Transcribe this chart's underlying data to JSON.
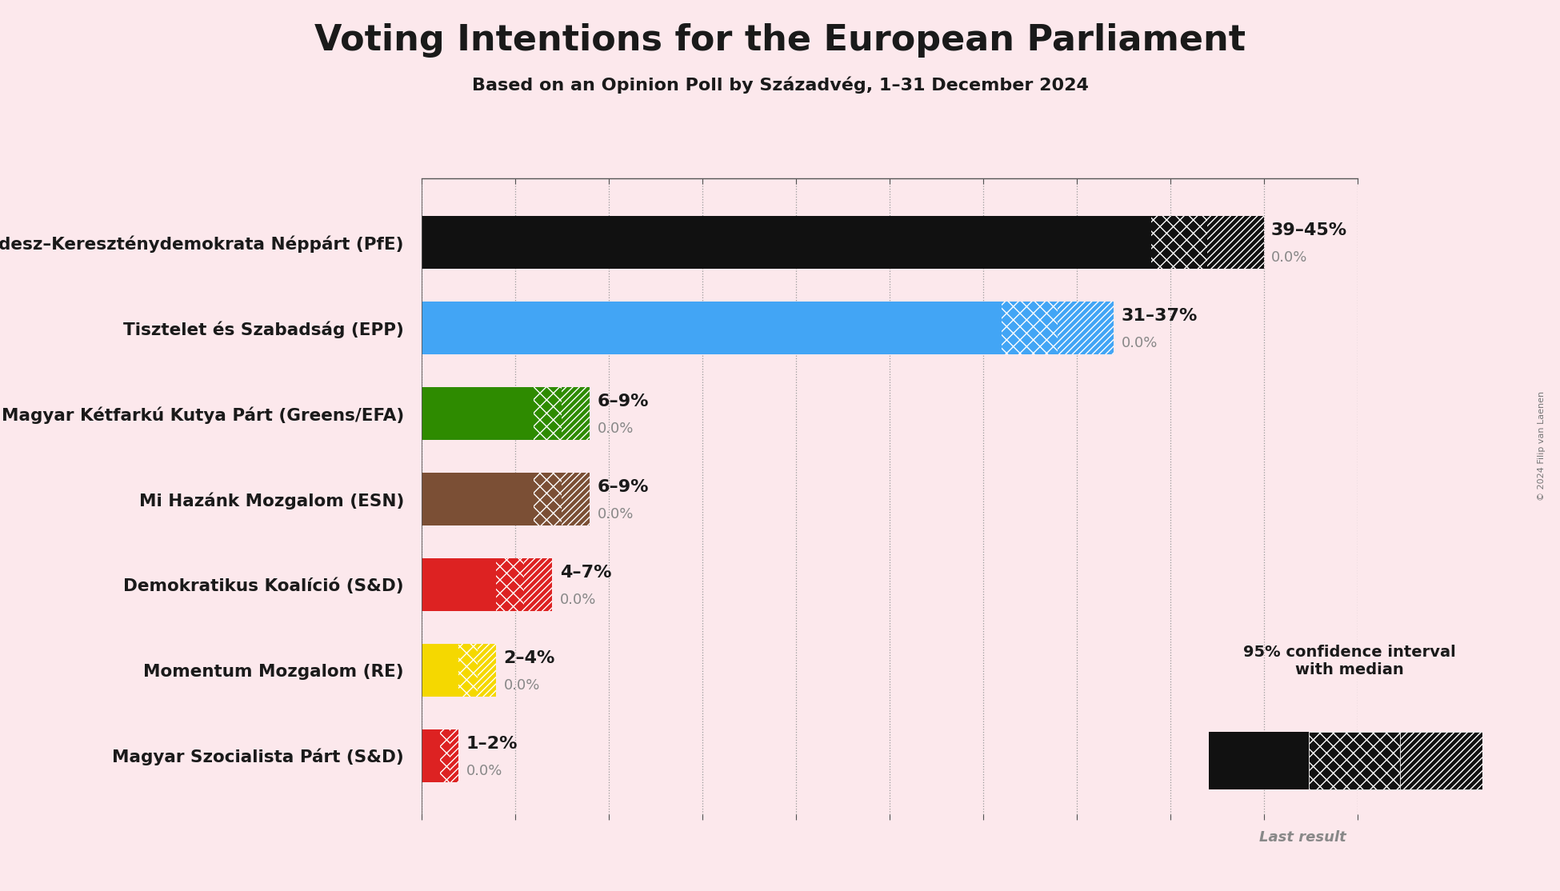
{
  "title": "Voting Intentions for the European Parliament",
  "subtitle": "Based on an Opinion Poll by Századvég, 1–31 December 2024",
  "background_color": "#fce8ec",
  "parties": [
    {
      "name": "Fidesz–Kereszténydemokrata Néppárt (PfE)",
      "color": "#111111",
      "median": 42,
      "low": 39,
      "high": 45,
      "last": 0.0,
      "label": "39–45%"
    },
    {
      "name": "Tisztelet és Szabadság (EPP)",
      "color": "#42a5f5",
      "median": 34,
      "low": 31,
      "high": 37,
      "last": 0.0,
      "label": "31–37%"
    },
    {
      "name": "Magyar Kétfarkú Kutya Párt (Greens/EFA)",
      "color": "#2e8b00",
      "median": 7.5,
      "low": 6,
      "high": 9,
      "last": 0.0,
      "label": "6–9%"
    },
    {
      "name": "Mi Hazánk Mozgalom (ESN)",
      "color": "#7b4f35",
      "median": 7.5,
      "low": 6,
      "high": 9,
      "last": 0.0,
      "label": "6–9%"
    },
    {
      "name": "Demokratikus Koalíció (S&D)",
      "color": "#dd2222",
      "median": 5.5,
      "low": 4,
      "high": 7,
      "last": 0.0,
      "label": "4–7%"
    },
    {
      "name": "Momentum Mozgalom (RE)",
      "color": "#f5d800",
      "median": 3,
      "low": 2,
      "high": 4,
      "last": 0.0,
      "label": "2–4%"
    },
    {
      "name": "Magyar Szocialista Párt (S&D)",
      "color": "#dd2222",
      "median": 1.5,
      "low": 1,
      "high": 2,
      "last": 0.0,
      "label": "1–2%"
    }
  ],
  "xlim": [
    0,
    50
  ],
  "title_fontsize": 32,
  "subtitle_fontsize": 16,
  "bar_height": 0.62,
  "copyright": "© 2024 Filip van Laenen"
}
